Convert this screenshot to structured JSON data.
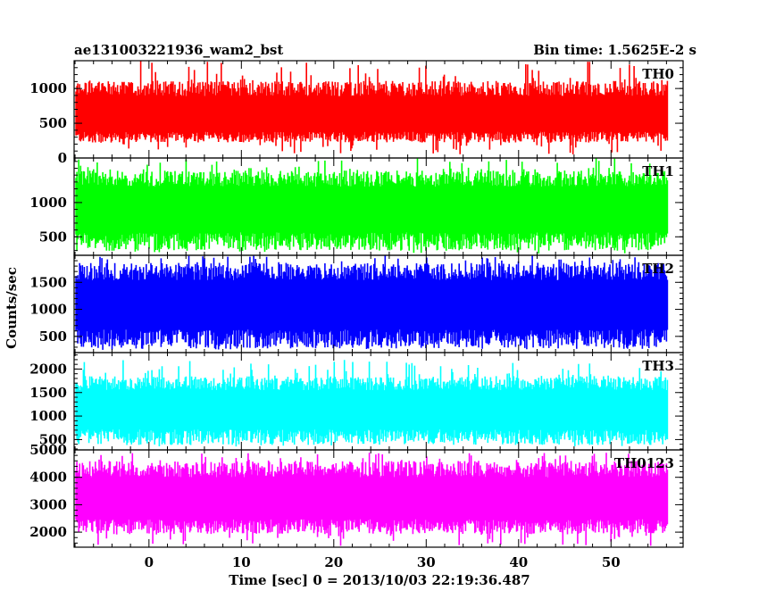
{
  "chart_data": {
    "type": "line",
    "title_left": "ae131003221936_wam2_bst",
    "title_right": "Bin time: 1.5625E-2 s",
    "xlabel": "Time [sec] 0 = 2013/10/03 22:19:36.487",
    "ylabel": "Counts/sec",
    "xlim": [
      -8.1,
      57.8
    ],
    "x_ticks": [
      0,
      10,
      20,
      30,
      40,
      50
    ],
    "x_range_data": [
      -7.9,
      56.1
    ],
    "grid": false,
    "panels": [
      {
        "name": "TH0",
        "color": "#ff0000",
        "ylim": [
          0,
          1400
        ],
        "y_ticks": [
          0,
          500,
          1000
        ],
        "baseline": 560,
        "lower_envelope": 300,
        "upper_envelope": 1000,
        "max_spike": 1400,
        "min_spike": 50
      },
      {
        "name": "TH1",
        "color": "#00ff00",
        "ylim": [
          230,
          1650
        ],
        "y_ticks": [
          500,
          1000
        ],
        "baseline": 880,
        "lower_envelope": 430,
        "upper_envelope": 1350,
        "max_spike": 1650,
        "min_spike": 250
      },
      {
        "name": "TH2",
        "color": "#0000ff",
        "ylim": [
          200,
          2000
        ],
        "y_ticks": [
          500,
          1000,
          1500
        ],
        "baseline": 1050,
        "lower_envelope": 450,
        "upper_envelope": 1700,
        "max_spike": 2000,
        "min_spike": 250
      },
      {
        "name": "TH3",
        "color": "#00ffff",
        "ylim": [
          280,
          2350
        ],
        "y_ticks": [
          500,
          1000,
          1500,
          2000
        ],
        "baseline": 1100,
        "lower_envelope": 550,
        "upper_envelope": 1700,
        "max_spike": 2200,
        "min_spike": 350
      },
      {
        "name": "TH0123",
        "color": "#ff00ff",
        "ylim": [
          1450,
          5000
        ],
        "y_ticks": [
          2000,
          3000,
          4000,
          5000
        ],
        "baseline": 3100,
        "lower_envelope": 2200,
        "upper_envelope": 4300,
        "max_spike": 4900,
        "min_spike": 1500
      }
    ]
  }
}
